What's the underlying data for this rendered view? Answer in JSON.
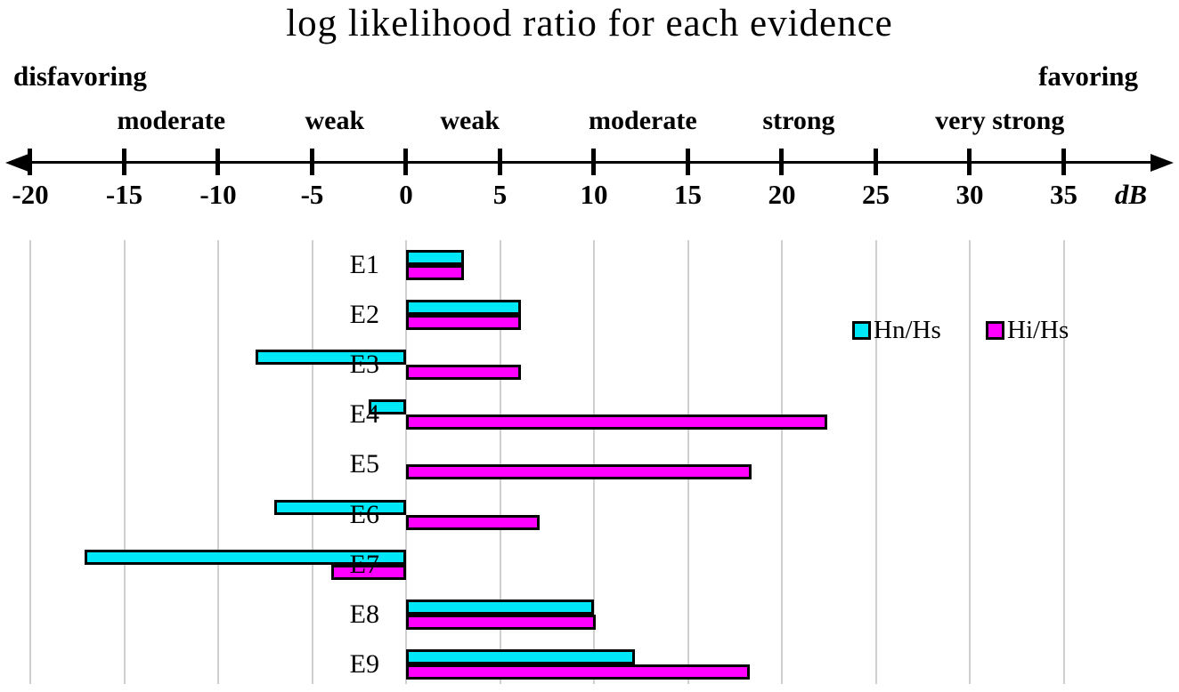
{
  "title": "log likelihood ratio for each evidence",
  "axis": {
    "unit_label": "dB",
    "min": -20,
    "max": 35,
    "tick_step": 5,
    "ticks": [
      -20,
      -15,
      -10,
      -5,
      0,
      5,
      10,
      15,
      20,
      25,
      30,
      35
    ],
    "direction_labels": {
      "left": "disfavoring",
      "right": "favoring"
    },
    "strength_zones": [
      {
        "label": "moderate",
        "center_db": -12.5
      },
      {
        "label": "weak",
        "center_db": -3.8
      },
      {
        "label": "weak",
        "center_db": 3.4
      },
      {
        "label": "moderate",
        "center_db": 12.6
      },
      {
        "label": "strong",
        "center_db": 20.9
      },
      {
        "label": "very strong",
        "center_db": 31.6
      }
    ]
  },
  "legend": {
    "items": [
      {
        "name": "Hn/Hs",
        "color": "#00E8F8"
      },
      {
        "name": "Hi/Hs",
        "color": "#FF00FF"
      }
    ]
  },
  "colors": {
    "cyan_series": "#00E8F8",
    "magenta_series": "#FF00FF",
    "gridline": "#CFCFCF",
    "axis": "#000000"
  },
  "chart_data": {
    "type": "bar",
    "orientation": "horizontal",
    "title": "log likelihood ratio for each evidence",
    "xlabel": "dB",
    "xlim": [
      -20,
      35
    ],
    "grid": true,
    "legend_position": "middle-right",
    "categories": [
      "E1",
      "E2",
      "E3",
      "E4",
      "E5",
      "E6",
      "E7",
      "E8",
      "E9"
    ],
    "series": [
      {
        "name": "Hn/Hs",
        "color": "#00E8F8",
        "values": [
          3.1,
          6.1,
          -8.0,
          -2.0,
          0,
          -7.0,
          -17.1,
          10.0,
          12.2
        ]
      },
      {
        "name": "Hi/Hs",
        "color": "#FF00FF",
        "values": [
          3.1,
          6.1,
          6.1,
          22.4,
          18.4,
          7.1,
          -4.0,
          10.1,
          18.3
        ]
      }
    ]
  }
}
